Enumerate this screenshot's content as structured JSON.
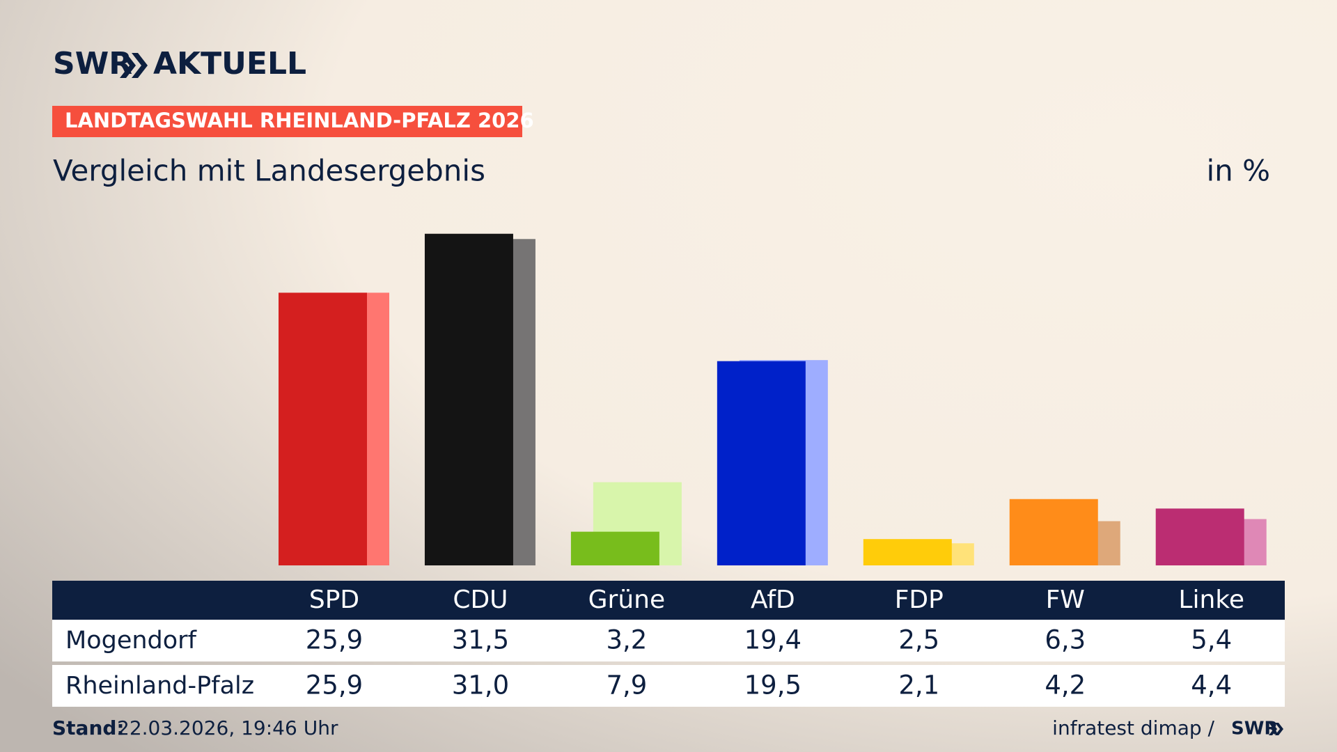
{
  "brand": {
    "name": "SWR",
    "product": "AKTUELL"
  },
  "chart_data": {
    "type": "bar",
    "supertitle": "LANDTAGSWAHL RHEINLAND-PFALZ 2026",
    "title": "Vergleich mit Landesergebnis",
    "unit": "in %",
    "categories": [
      "SPD",
      "CDU",
      "Grüne",
      "AfD",
      "FDP",
      "FW",
      "Linke"
    ],
    "series": [
      {
        "name": "Mogendorf",
        "colors": [
          "#d41f1f",
          "#141414",
          "#78bd1c",
          "#0021c9",
          "#ffcc0a",
          "#ff8c19",
          "#bb2d72"
        ],
        "values": [
          25.9,
          31.5,
          3.2,
          19.4,
          2.5,
          6.3,
          5.4
        ],
        "value_labels": [
          "25,9",
          "31,5",
          "3,2",
          "19,4",
          "2,5",
          "6,3",
          "5,4"
        ]
      },
      {
        "name": "Rheinland-Pfalz",
        "colors": [
          "#ff7670",
          "#767474",
          "#d8f5ab",
          "#9eadff",
          "#ffe279",
          "#dea87a",
          "#df88b6"
        ],
        "values": [
          25.9,
          31.0,
          7.9,
          19.5,
          2.1,
          4.2,
          4.4
        ],
        "value_labels": [
          "25,9",
          "31,0",
          "7,9",
          "19,5",
          "2,1",
          "4,2",
          "4,4"
        ]
      }
    ]
  },
  "footer": {
    "stand_label": "Stand:",
    "stand": "22.03.2026, 19:46 Uhr",
    "source": "infratest dimap /",
    "source_brand": "SWR"
  }
}
